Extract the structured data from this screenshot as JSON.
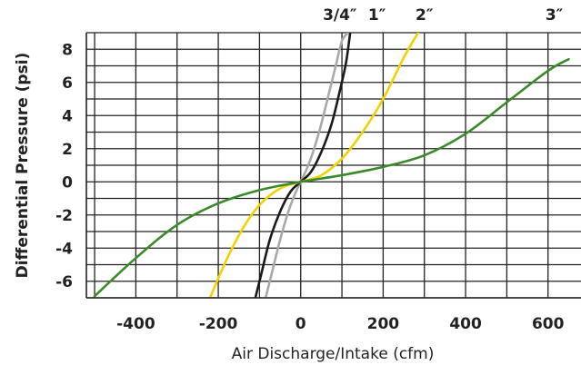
{
  "chart_data": {
    "type": "line",
    "title": "",
    "xlabel": "Air Discharge/Intake (cfm)",
    "ylabel": "Differential Pressure (psi)",
    "xlim": [
      -520,
      680
    ],
    "ylim": [
      -7,
      9
    ],
    "x_ticks": [
      -400,
      -200,
      0,
      200,
      400,
      600
    ],
    "y_ticks": [
      -6,
      -4,
      -2,
      0,
      2,
      4,
      6,
      8
    ],
    "x_grid_step": 100,
    "y_grid_step": 1,
    "grid": true,
    "legend": "none (labels at top of curves)",
    "series": [
      {
        "name": "3/4″",
        "color": "#a9a9a9",
        "label_x": 95,
        "x": [
          -85,
          -70,
          -50,
          -30,
          -15,
          0,
          15,
          30,
          50,
          70,
          85,
          100,
          115
        ],
        "y": [
          -7,
          -5.5,
          -3.5,
          -1.8,
          -0.8,
          0,
          0.8,
          1.8,
          3.5,
          5.5,
          7,
          8.5,
          9
        ]
      },
      {
        "name": "1″",
        "color": "#1a1a1a",
        "label_x": 185,
        "x": [
          -110,
          -95,
          -75,
          -50,
          -25,
          0,
          25,
          50,
          75,
          95,
          110,
          120
        ],
        "y": [
          -7,
          -5.5,
          -3.5,
          -1.8,
          -0.6,
          0,
          0.6,
          1.8,
          3.5,
          5.5,
          7.2,
          9
        ]
      },
      {
        "name": "2″",
        "color": "#f2d200",
        "label_x": 300,
        "x": [
          -220,
          -180,
          -140,
          -100,
          -50,
          0,
          50,
          100,
          150,
          200,
          250,
          285
        ],
        "y": [
          -7,
          -4.7,
          -2.8,
          -1.4,
          -0.4,
          0,
          0.4,
          1.4,
          3,
          5,
          7.5,
          9
        ]
      },
      {
        "name": "3″",
        "color": "#3a8a2a",
        "label_x": 615,
        "x": [
          -500,
          -400,
          -300,
          -200,
          -100,
          0,
          100,
          200,
          300,
          400,
          500,
          600,
          650
        ],
        "y": [
          -6.9,
          -4.6,
          -2.6,
          -1.3,
          -0.5,
          0,
          0.4,
          0.9,
          1.6,
          2.9,
          4.8,
          6.7,
          7.4
        ]
      }
    ]
  }
}
